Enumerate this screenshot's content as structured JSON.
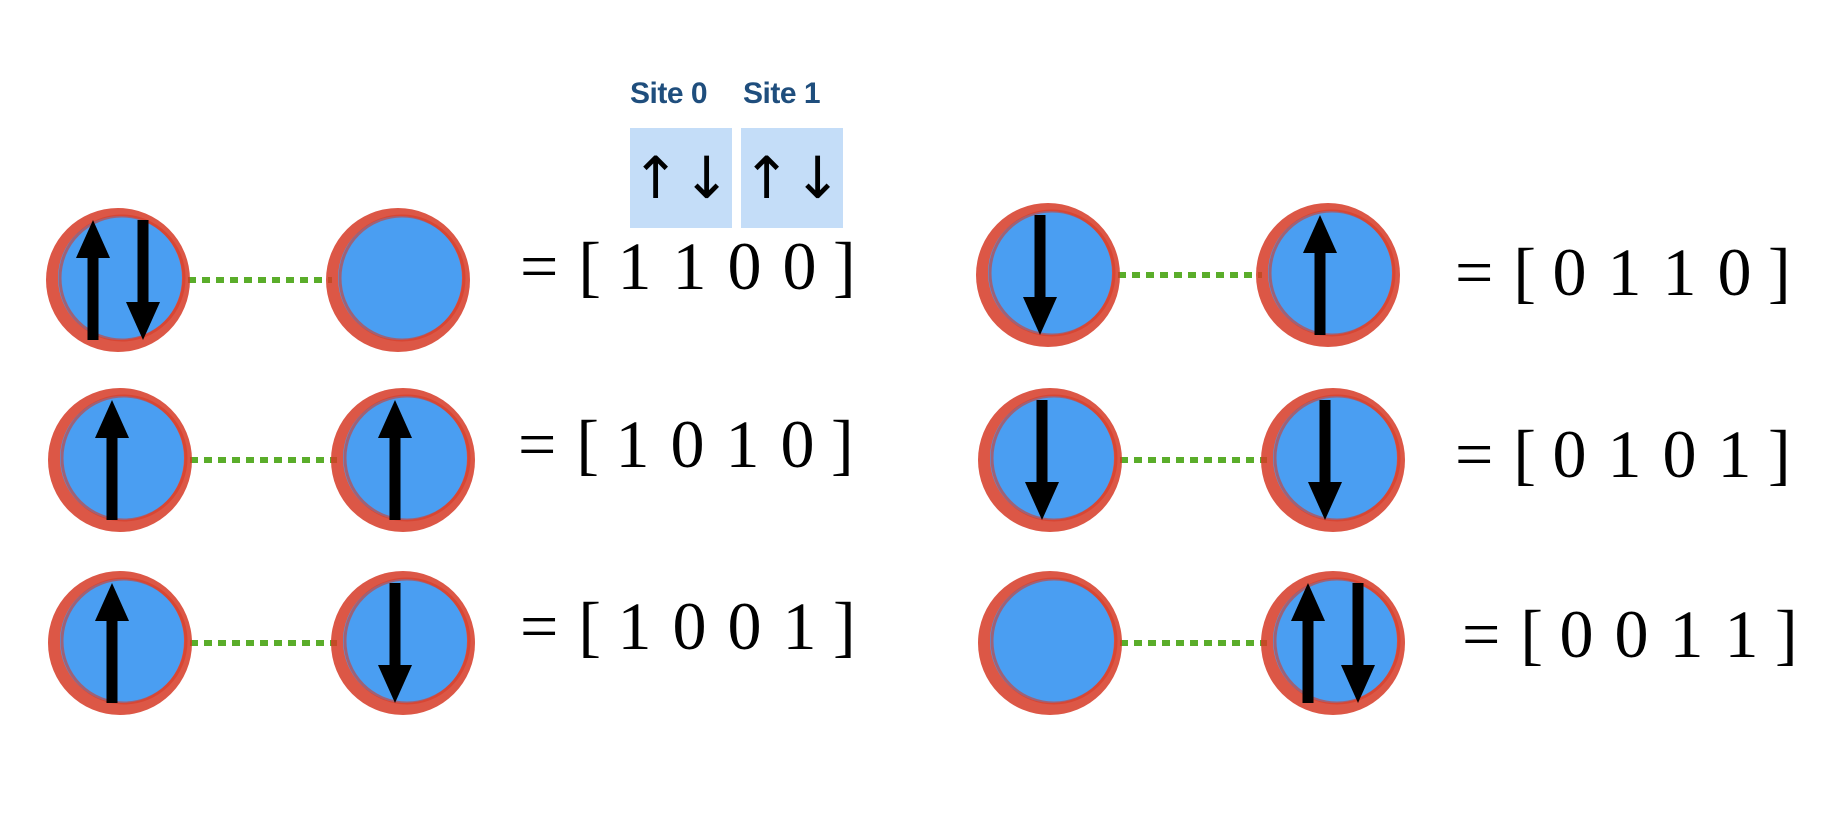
{
  "header": {
    "site0_label": "Site 0",
    "site1_label": "Site 1",
    "site0_spins": [
      "↑",
      "↓"
    ],
    "site1_spins": [
      "↑",
      "↓"
    ]
  },
  "colors": {
    "site_fill": "#4a9ef2",
    "site_rim": "#d63a26",
    "bond": "#5aad2a",
    "arrow": "#000000",
    "header_text": "#1f4e7d",
    "header_box": "#c4ddf8"
  },
  "configurations": [
    {
      "id": "c1100",
      "site0": [
        "up",
        "down"
      ],
      "site1": [],
      "vector": [
        "1",
        "1",
        "0",
        "0"
      ]
    },
    {
      "id": "c0110",
      "site0": [
        "down"
      ],
      "site1": [
        "up"
      ],
      "vector": [
        "0",
        "1",
        "1",
        "0"
      ]
    },
    {
      "id": "c1010",
      "site0": [
        "up"
      ],
      "site1": [
        "up"
      ],
      "vector": [
        "1",
        "0",
        "1",
        "0"
      ]
    },
    {
      "id": "c0101",
      "site0": [
        "down"
      ],
      "site1": [
        "down"
      ],
      "vector": [
        "0",
        "1",
        "0",
        "1"
      ]
    },
    {
      "id": "c1001",
      "site0": [
        "up"
      ],
      "site1": [
        "down"
      ],
      "vector": [
        "1",
        "0",
        "0",
        "1"
      ]
    },
    {
      "id": "c0011",
      "site0": [],
      "site1": [
        "up",
        "down"
      ],
      "vector": [
        "0",
        "0",
        "1",
        "1"
      ]
    }
  ],
  "symbols": {
    "equals": "=",
    "open_bracket": "[",
    "close_bracket": "]"
  }
}
